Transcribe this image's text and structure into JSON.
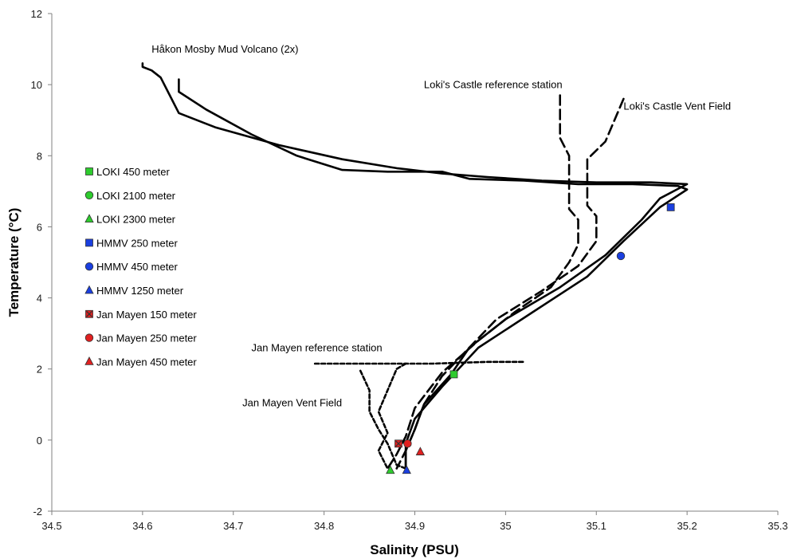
{
  "chart_data": {
    "type": "line",
    "xlabel": "Salinity (PSU)",
    "ylabel": "Temperature (°C)",
    "xlim": [
      34.5,
      35.3
    ],
    "ylim": [
      -2,
      12
    ],
    "x_ticks": [
      "34.5",
      "34.6",
      "34.7",
      "34.8",
      "34.9",
      "35",
      "35.1",
      "35.2",
      "35.3"
    ],
    "y_ticks": [
      "-2",
      "0",
      "2",
      "4",
      "6",
      "8",
      "10",
      "12"
    ],
    "grid": false,
    "legend_position": "left",
    "annotations": [
      {
        "text": "Håkon Mosby Mud Volcano (2x)",
        "x": 34.61,
        "y": 10.9
      },
      {
        "text": "Loki's Castle reference station",
        "x": 34.91,
        "y": 9.9
      },
      {
        "text": "Loki's Castle Vent Field",
        "x": 35.13,
        "y": 9.3
      },
      {
        "text": "Jan Mayen reference station",
        "x": 34.72,
        "y": 2.5
      },
      {
        "text": "Jan Mayen Vent Field",
        "x": 34.71,
        "y": 0.95
      }
    ],
    "series": [
      {
        "style": "solid",
        "points": [
          [
            34.6,
            10.6
          ],
          [
            34.6,
            10.5
          ],
          [
            34.61,
            10.4
          ],
          [
            34.62,
            10.2
          ],
          [
            34.63,
            9.7
          ],
          [
            34.64,
            9.2
          ],
          [
            34.68,
            8.8
          ],
          [
            34.75,
            8.3
          ],
          [
            34.82,
            7.9
          ],
          [
            34.88,
            7.65
          ],
          [
            34.93,
            7.5
          ],
          [
            34.98,
            7.4
          ],
          [
            35.04,
            7.3
          ],
          [
            35.1,
            7.25
          ],
          [
            35.16,
            7.25
          ],
          [
            35.2,
            7.2
          ],
          [
            35.17,
            6.8
          ],
          [
            35.15,
            6.2
          ],
          [
            35.11,
            5.2
          ],
          [
            35.06,
            4.3
          ],
          [
            35.0,
            3.4
          ],
          [
            34.96,
            2.6
          ],
          [
            34.94,
            1.85
          ],
          [
            34.91,
            1.0
          ],
          [
            34.9,
            0.3
          ],
          [
            34.89,
            -0.3
          ],
          [
            34.89,
            -0.85
          ]
        ]
      },
      {
        "style": "solid",
        "points": [
          [
            34.64,
            10.15
          ],
          [
            34.64,
            9.8
          ],
          [
            34.67,
            9.3
          ],
          [
            34.72,
            8.6
          ],
          [
            34.77,
            8.0
          ],
          [
            34.82,
            7.6
          ],
          [
            34.87,
            7.55
          ],
          [
            34.93,
            7.55
          ],
          [
            34.96,
            7.35
          ],
          [
            35.02,
            7.3
          ],
          [
            35.08,
            7.2
          ],
          [
            35.14,
            7.2
          ],
          [
            35.19,
            7.15
          ],
          [
            35.2,
            7.05
          ],
          [
            35.17,
            6.55
          ],
          [
            35.13,
            5.6
          ],
          [
            35.09,
            4.6
          ],
          [
            35.03,
            3.6
          ],
          [
            34.97,
            2.6
          ],
          [
            34.93,
            1.5
          ],
          [
            34.9,
            0.6
          ],
          [
            34.89,
            -0.1
          ],
          [
            34.89,
            -0.8
          ]
        ]
      },
      {
        "style": "dashed",
        "points": [
          [
            35.06,
            9.7
          ],
          [
            35.06,
            9.0
          ],
          [
            35.06,
            8.5
          ],
          [
            35.07,
            8.0
          ],
          [
            35.07,
            7.4
          ],
          [
            35.07,
            6.5
          ],
          [
            35.08,
            6.2
          ],
          [
            35.08,
            5.5
          ],
          [
            35.07,
            5.0
          ],
          [
            35.05,
            4.3
          ],
          [
            35.01,
            3.6
          ],
          [
            34.97,
            2.8
          ],
          [
            34.93,
            1.9
          ],
          [
            34.9,
            0.9
          ],
          [
            34.89,
            0.1
          ],
          [
            34.88,
            -0.4
          ],
          [
            34.87,
            -0.8
          ]
        ]
      },
      {
        "style": "dashed",
        "points": [
          [
            35.13,
            9.6
          ],
          [
            35.12,
            9.0
          ],
          [
            35.11,
            8.4
          ],
          [
            35.09,
            7.9
          ],
          [
            35.09,
            7.0
          ],
          [
            35.09,
            6.6
          ],
          [
            35.1,
            6.3
          ],
          [
            35.1,
            5.6
          ],
          [
            35.08,
            4.9
          ],
          [
            35.04,
            4.2
          ],
          [
            34.99,
            3.4
          ],
          [
            34.96,
            2.6
          ],
          [
            34.93,
            1.8
          ],
          [
            34.91,
            1.0
          ],
          [
            34.9,
            0.3
          ],
          [
            34.89,
            -0.3
          ],
          [
            34.88,
            -0.8
          ]
        ]
      },
      {
        "style": "short-dash",
        "points": [
          [
            34.79,
            2.15
          ],
          [
            34.85,
            2.15
          ],
          [
            34.92,
            2.15
          ],
          [
            34.98,
            2.2
          ],
          [
            35.02,
            2.2
          ]
        ]
      },
      {
        "style": "short-dash",
        "points": [
          [
            34.89,
            2.15
          ],
          [
            34.88,
            2.0
          ],
          [
            34.87,
            1.4
          ],
          [
            34.86,
            0.8
          ],
          [
            34.87,
            0.2
          ],
          [
            34.86,
            -0.3
          ],
          [
            34.87,
            -0.8
          ]
        ]
      },
      {
        "style": "short-dash",
        "points": [
          [
            34.84,
            1.95
          ],
          [
            34.85,
            1.4
          ],
          [
            34.85,
            0.8
          ],
          [
            34.86,
            0.3
          ],
          [
            34.87,
            -0.1
          ],
          [
            34.88,
            -0.7
          ],
          [
            34.89,
            -0.8
          ]
        ]
      }
    ],
    "markers": [
      {
        "label": "LOKI 450 meter",
        "shape": "square",
        "color": "#2ecc2e",
        "x": 34.943,
        "y": 1.85
      },
      {
        "label": "LOKI 2100 meter",
        "shape": "circle",
        "color": "#2ecc2e",
        "x": null,
        "y": null
      },
      {
        "label": "LOKI 2300 meter",
        "shape": "triangle",
        "color": "#2ecc2e",
        "x": 34.873,
        "y": -0.85
      },
      {
        "label": "HMMV 250 meter",
        "shape": "square",
        "color": "#1a3fe0",
        "x": 35.182,
        "y": 6.55
      },
      {
        "label": "HMMV 450 meter",
        "shape": "circle",
        "color": "#1a3fe0",
        "x": 35.127,
        "y": 5.18
      },
      {
        "label": "HMMV 1250 meter",
        "shape": "triangle",
        "color": "#1a3fe0",
        "x": 34.891,
        "y": -0.85
      },
      {
        "label": "Jan Mayen 150 meter",
        "shape": "square-x",
        "color": "#e02020",
        "x": 34.882,
        "y": -0.1
      },
      {
        "label": "Jan Mayen 250 meter",
        "shape": "circle",
        "color": "#e02020",
        "x": 34.892,
        "y": -0.1
      },
      {
        "label": "Jan Mayen 450 meter",
        "shape": "triangle",
        "color": "#e02020",
        "x": 34.906,
        "y": -0.33
      }
    ]
  }
}
